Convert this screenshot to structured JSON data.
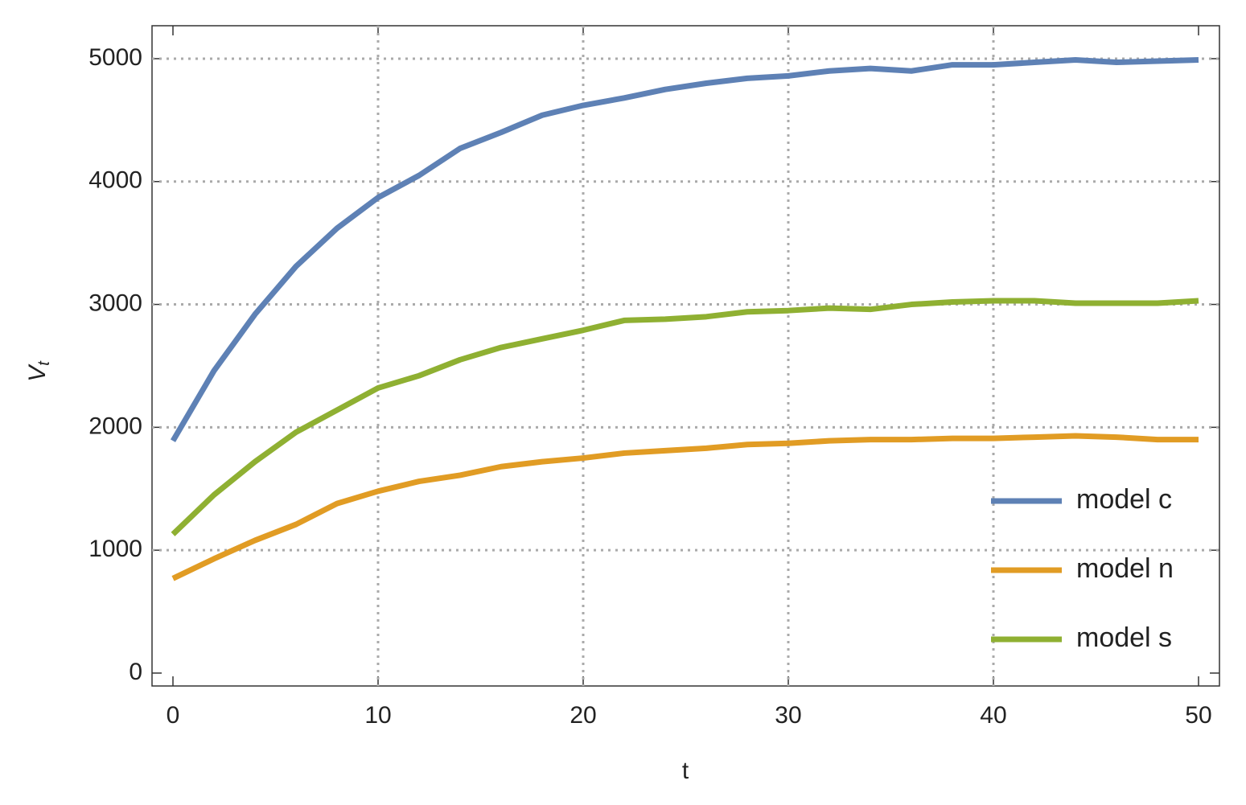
{
  "chart_data": {
    "type": "line",
    "y_label": {
      "main": "V",
      "sub": "t"
    },
    "x_label": "t",
    "x": [
      0,
      2,
      4,
      6,
      8,
      10,
      12,
      14,
      16,
      18,
      20,
      22,
      24,
      26,
      28,
      30,
      32,
      34,
      36,
      38,
      40,
      42,
      44,
      46,
      48,
      50
    ],
    "series": [
      {
        "name": "model c",
        "color": "#5e81b5",
        "values": [
          1890,
          2460,
          2920,
          3310,
          3620,
          3870,
          4050,
          4270,
          4400,
          4540,
          4620,
          4680,
          4750,
          4800,
          4840,
          4860,
          4900,
          4920,
          4900,
          4950,
          4950,
          4970,
          4990,
          4970,
          4980,
          4990
        ]
      },
      {
        "name": "model n",
        "color": "#e19c24",
        "values": [
          770,
          930,
          1080,
          1210,
          1380,
          1480,
          1560,
          1610,
          1680,
          1720,
          1750,
          1790,
          1810,
          1830,
          1860,
          1870,
          1890,
          1900,
          1900,
          1910,
          1910,
          1920,
          1930,
          1920,
          1900,
          1900
        ]
      },
      {
        "name": "model s",
        "color": "#8fb032",
        "values": [
          1130,
          1450,
          1720,
          1960,
          2140,
          2320,
          2420,
          2550,
          2650,
          2720,
          2790,
          2870,
          2880,
          2900,
          2940,
          2950,
          2970,
          2960,
          3000,
          3020,
          3030,
          3030,
          3010,
          3010,
          3010,
          3030
        ]
      }
    ],
    "xlim": [
      -1.02,
      51.02
    ],
    "ylim": [
      -105,
      5268
    ],
    "xticks": [
      0,
      10,
      20,
      30,
      40,
      50
    ],
    "yticks": [
      0,
      1000,
      2000,
      3000,
      4000,
      5000
    ],
    "grid": true,
    "legend": "bottom-right"
  }
}
